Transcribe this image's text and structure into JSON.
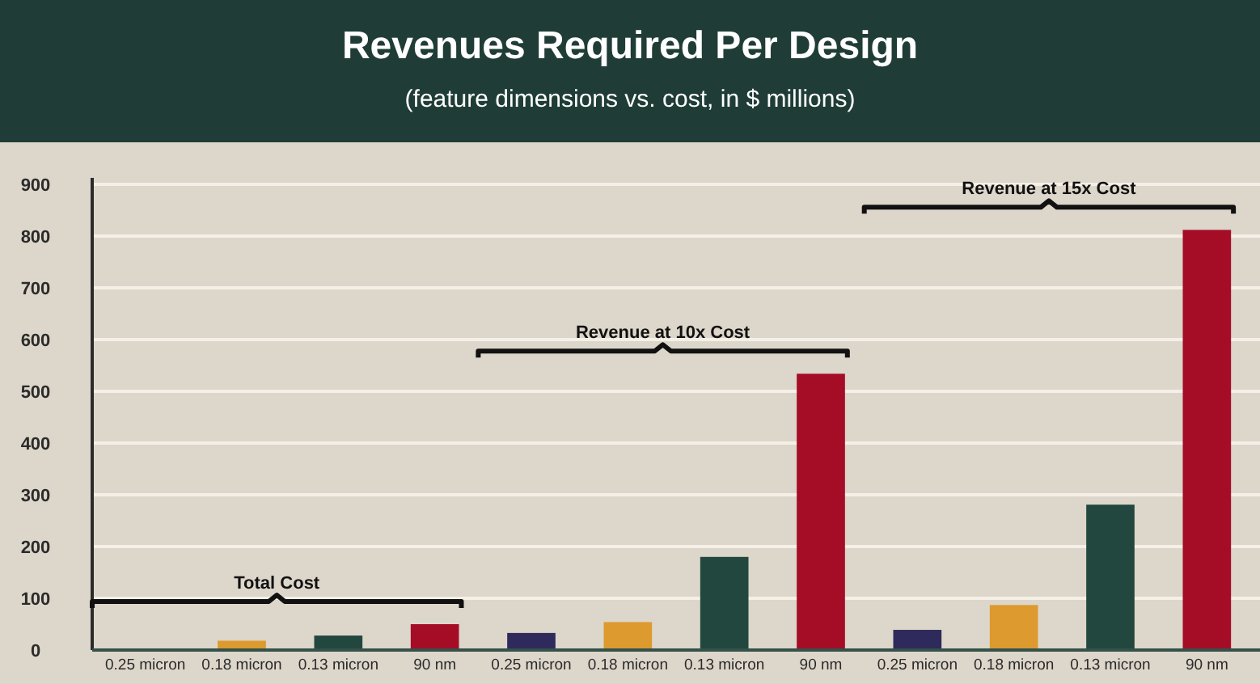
{
  "chart_data": {
    "type": "bar",
    "title": "Revenues Required Per Design",
    "subtitle": "(feature dimensions vs. cost, in $ millions)",
    "categories": [
      "0.25 micron",
      "0.18 micron",
      "0.13 micron",
      "90 nm",
      "0.25 micron",
      "0.18 micron",
      "0.13 micron",
      "90 nm",
      "0.25 micron",
      "0.18 micron",
      "0.13 micron",
      "90 nm"
    ],
    "values": [
      0,
      18,
      28,
      50,
      33,
      54,
      180,
      534,
      39,
      87,
      281,
      812
    ],
    "colors": [
      "#2e2a5c",
      "#dd9a2e",
      "#22473f",
      "#a50d27",
      "#2e2a5c",
      "#dd9a2e",
      "#22473f",
      "#a50d27",
      "#2e2a5c",
      "#dd9a2e",
      "#22473f",
      "#a50d27"
    ],
    "ylim": [
      0,
      900
    ],
    "yticks": [
      0,
      100,
      200,
      300,
      400,
      500,
      600,
      700,
      800,
      900
    ],
    "grid": "y",
    "annotations": [
      "Total Cost",
      "Revenue at 10x Cost",
      "Revenue at 15x Cost"
    ]
  }
}
